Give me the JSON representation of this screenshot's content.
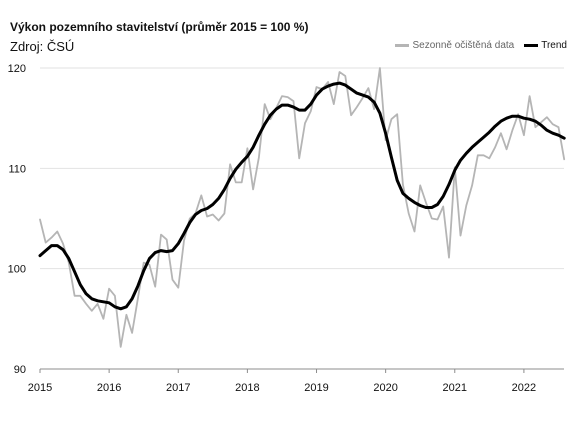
{
  "header": {
    "title": "Výkon pozemního stavitelství (průměr 2015 = 100 %)",
    "source": "Zdroj: ČSÚ"
  },
  "colors": {
    "raw": "#b5b5b5",
    "trend": "#000000",
    "grid": "#e2e2e2",
    "axis": "#8c8c8c",
    "text": "#111111"
  },
  "chart_data": {
    "type": "line",
    "title": "Výkon pozemního stavitelství (průměr 2015 = 100 %)",
    "xlabel": "",
    "ylabel": "",
    "ylim": [
      90,
      120
    ],
    "xlim": [
      2015,
      2022.58
    ],
    "y_ticks": [
      "90",
      "100",
      "110",
      "120"
    ],
    "x_ticks": [
      "2015",
      "2016",
      "2017",
      "2018",
      "2019",
      "2020",
      "2021",
      "2022"
    ],
    "grid": "horizontal",
    "legend": "top-right",
    "series": [
      {
        "name": "Sezonně očištěná data",
        "x": [
          2015.0,
          2015.083,
          2015.167,
          2015.25,
          2015.333,
          2015.417,
          2015.5,
          2015.583,
          2015.667,
          2015.75,
          2015.833,
          2015.917,
          2016.0,
          2016.083,
          2016.167,
          2016.25,
          2016.333,
          2016.417,
          2016.5,
          2016.583,
          2016.667,
          2016.75,
          2016.833,
          2016.917,
          2017.0,
          2017.083,
          2017.167,
          2017.25,
          2017.333,
          2017.417,
          2017.5,
          2017.583,
          2017.667,
          2017.75,
          2017.833,
          2017.917,
          2018.0,
          2018.083,
          2018.167,
          2018.25,
          2018.333,
          2018.417,
          2018.5,
          2018.583,
          2018.667,
          2018.75,
          2018.833,
          2018.917,
          2019.0,
          2019.083,
          2019.167,
          2019.25,
          2019.333,
          2019.417,
          2019.5,
          2019.583,
          2019.667,
          2019.75,
          2019.833,
          2019.917,
          2020.0,
          2020.083,
          2020.167,
          2020.25,
          2020.333,
          2020.417,
          2020.5,
          2020.583,
          2020.667,
          2020.75,
          2020.833,
          2020.917,
          2021.0,
          2021.083,
          2021.167,
          2021.25,
          2021.333,
          2021.417,
          2021.5,
          2021.583,
          2021.667,
          2021.75,
          2021.833,
          2021.917,
          2022.0,
          2022.083,
          2022.167,
          2022.25,
          2022.333,
          2022.417,
          2022.5,
          2022.583
        ],
        "values": [
          104.9,
          102.6,
          103.1,
          103.7,
          102.5,
          100.6,
          97.3,
          97.3,
          96.5,
          95.8,
          96.5,
          95.0,
          98.0,
          97.3,
          92.2,
          95.4,
          93.6,
          97.1,
          100.6,
          100.4,
          98.2,
          103.4,
          102.9,
          98.9,
          98.1,
          102.8,
          105.0,
          105.5,
          107.3,
          105.2,
          105.4,
          104.8,
          105.5,
          110.4,
          108.6,
          108.6,
          112.0,
          107.9,
          111.1,
          116.4,
          114.9,
          116.0,
          117.2,
          117.1,
          116.7,
          111.0,
          114.5,
          115.7,
          118.1,
          117.9,
          118.6,
          116.4,
          119.6,
          119.2,
          115.3,
          116.1,
          117.0,
          118.0,
          115.9,
          120.0,
          112.8,
          114.9,
          115.4,
          108.4,
          105.5,
          103.7,
          108.3,
          106.6,
          105.0,
          104.9,
          106.2,
          101.1,
          110.1,
          103.3,
          106.3,
          108.3,
          111.3,
          111.3,
          111.0,
          112.1,
          113.5,
          111.9,
          113.8,
          115.4,
          113.3,
          117.2,
          114.1,
          114.6,
          115.1,
          114.4,
          114.1,
          110.9
        ]
      },
      {
        "name": "Trend",
        "x": [
          2015.0,
          2015.083,
          2015.167,
          2015.25,
          2015.333,
          2015.417,
          2015.5,
          2015.583,
          2015.667,
          2015.75,
          2015.833,
          2015.917,
          2016.0,
          2016.083,
          2016.167,
          2016.25,
          2016.333,
          2016.417,
          2016.5,
          2016.583,
          2016.667,
          2016.75,
          2016.833,
          2016.917,
          2017.0,
          2017.083,
          2017.167,
          2017.25,
          2017.333,
          2017.417,
          2017.5,
          2017.583,
          2017.667,
          2017.75,
          2017.833,
          2017.917,
          2018.0,
          2018.083,
          2018.167,
          2018.25,
          2018.333,
          2018.417,
          2018.5,
          2018.583,
          2018.667,
          2018.75,
          2018.833,
          2018.917,
          2019.0,
          2019.083,
          2019.167,
          2019.25,
          2019.333,
          2019.417,
          2019.5,
          2019.583,
          2019.667,
          2019.75,
          2019.833,
          2019.917,
          2020.0,
          2020.083,
          2020.167,
          2020.25,
          2020.333,
          2020.417,
          2020.5,
          2020.583,
          2020.667,
          2020.75,
          2020.833,
          2020.917,
          2021.0,
          2021.083,
          2021.167,
          2021.25,
          2021.333,
          2021.417,
          2021.5,
          2021.583,
          2021.667,
          2021.75,
          2021.833,
          2021.917,
          2022.0,
          2022.083,
          2022.167,
          2022.25,
          2022.333,
          2022.417,
          2022.5,
          2022.583
        ],
        "values": [
          101.3,
          101.8,
          102.3,
          102.3,
          101.9,
          101.0,
          99.7,
          98.4,
          97.5,
          97.0,
          96.8,
          96.7,
          96.6,
          96.2,
          96.0,
          96.2,
          97.0,
          98.3,
          99.8,
          101.0,
          101.6,
          101.8,
          101.7,
          101.8,
          102.5,
          103.5,
          104.6,
          105.4,
          105.8,
          106.0,
          106.4,
          107.0,
          107.9,
          109.0,
          109.9,
          110.6,
          111.2,
          112.1,
          113.3,
          114.4,
          115.3,
          115.9,
          116.3,
          116.3,
          116.1,
          115.8,
          115.8,
          116.4,
          117.3,
          117.9,
          118.2,
          118.4,
          118.5,
          118.3,
          117.9,
          117.5,
          117.3,
          117.1,
          116.6,
          115.5,
          113.5,
          111.1,
          108.8,
          107.5,
          107.0,
          106.6,
          106.3,
          106.1,
          106.1,
          106.4,
          107.2,
          108.4,
          109.8,
          110.8,
          111.5,
          112.1,
          112.6,
          113.1,
          113.6,
          114.2,
          114.7,
          115.0,
          115.2,
          115.2,
          115.0,
          114.9,
          114.7,
          114.3,
          113.8,
          113.5,
          113.3,
          113.0
        ]
      }
    ]
  }
}
